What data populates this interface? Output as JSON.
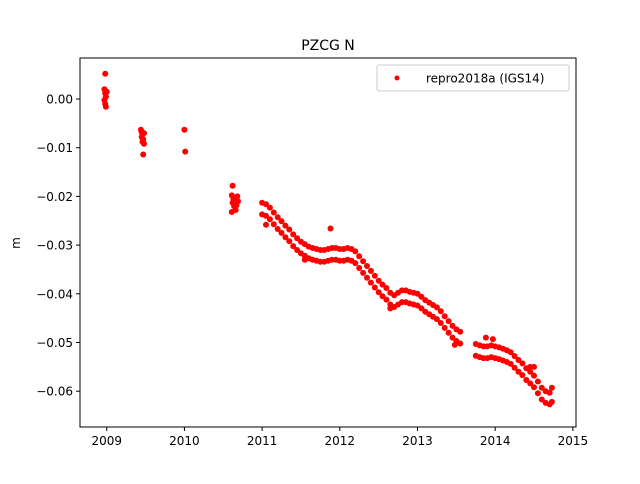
{
  "chart_data": {
    "type": "scatter",
    "title": "PZCG N",
    "xlabel": "",
    "ylabel": "m",
    "xlim": [
      2008.656,
      2015.04
    ],
    "ylim": [
      -0.06735,
      0.00842
    ],
    "xticks": [
      2009,
      2010,
      2011,
      2012,
      2013,
      2014,
      2015
    ],
    "xtick_labels": [
      "2009",
      "2010",
      "2011",
      "2012",
      "2013",
      "2014",
      "2015"
    ],
    "yticks": [
      0.0,
      -0.01,
      -0.02,
      -0.03,
      -0.04,
      -0.05,
      -0.06
    ],
    "ytick_labels": [
      "0.00",
      "−0.01",
      "−0.02",
      "−0.03",
      "−0.04",
      "−0.05",
      "−0.06"
    ],
    "grid": false,
    "legend": {
      "placement": "top-right",
      "entries": [
        "repro2018a (IGS14)"
      ]
    },
    "series": [
      {
        "name": "repro2018a (IGS14)",
        "color": "#ff0000",
        "marker": "circle",
        "points": [
          [
            2008.98,
            0.0052
          ],
          [
            2008.97,
            0.002
          ],
          [
            2008.98,
            0.0012
          ],
          [
            2008.99,
            0.0005
          ],
          [
            2008.97,
            -0.0002
          ],
          [
            2008.98,
            -0.001
          ],
          [
            2008.99,
            -0.0016
          ],
          [
            2009.0,
            0.0015
          ],
          [
            2009.44,
            -0.0063
          ],
          [
            2009.45,
            -0.0068
          ],
          [
            2009.46,
            -0.0072
          ],
          [
            2009.45,
            -0.0078
          ],
          [
            2009.47,
            -0.0083
          ],
          [
            2009.46,
            -0.0088
          ],
          [
            2009.48,
            -0.0092
          ],
          [
            2009.47,
            -0.0114
          ],
          [
            2009.48,
            -0.007
          ],
          [
            2010.0,
            -0.0063
          ],
          [
            2010.01,
            -0.0108
          ],
          [
            2010.62,
            -0.0178
          ],
          [
            2010.61,
            -0.0198
          ],
          [
            2010.63,
            -0.0205
          ],
          [
            2010.62,
            -0.0213
          ],
          [
            2010.64,
            -0.022
          ],
          [
            2010.61,
            -0.0232
          ],
          [
            2010.66,
            -0.0228
          ],
          [
            2010.68,
            -0.02
          ],
          [
            2010.69,
            -0.021
          ],
          [
            2010.67,
            -0.0218
          ],
          [
            2011.0,
            -0.0213
          ],
          [
            2011.0,
            -0.0237
          ],
          [
            2011.05,
            -0.0216
          ],
          [
            2011.05,
            -0.024
          ],
          [
            2011.1,
            -0.0223
          ],
          [
            2011.1,
            -0.0247
          ],
          [
            2011.15,
            -0.0233
          ],
          [
            2011.15,
            -0.0257
          ],
          [
            2011.2,
            -0.0243
          ],
          [
            2011.2,
            -0.0267
          ],
          [
            2011.25,
            -0.0251
          ],
          [
            2011.25,
            -0.0275
          ],
          [
            2011.3,
            -0.026
          ],
          [
            2011.3,
            -0.0284
          ],
          [
            2011.35,
            -0.0268
          ],
          [
            2011.35,
            -0.0292
          ],
          [
            2011.4,
            -0.0278
          ],
          [
            2011.4,
            -0.0302
          ],
          [
            2011.45,
            -0.0286
          ],
          [
            2011.45,
            -0.031
          ],
          [
            2011.5,
            -0.0293
          ],
          [
            2011.5,
            -0.0317
          ],
          [
            2011.55,
            -0.0298
          ],
          [
            2011.55,
            -0.0322
          ],
          [
            2011.6,
            -0.0303
          ],
          [
            2011.6,
            -0.0327
          ],
          [
            2011.65,
            -0.0306
          ],
          [
            2011.65,
            -0.033
          ],
          [
            2011.7,
            -0.0308
          ],
          [
            2011.7,
            -0.0332
          ],
          [
            2011.75,
            -0.031
          ],
          [
            2011.75,
            -0.0334
          ],
          [
            2011.8,
            -0.031
          ],
          [
            2011.8,
            -0.0334
          ],
          [
            2011.85,
            -0.0308
          ],
          [
            2011.85,
            -0.0332
          ],
          [
            2011.9,
            -0.0306
          ],
          [
            2011.9,
            -0.033
          ],
          [
            2011.95,
            -0.0306
          ],
          [
            2011.95,
            -0.033
          ],
          [
            2012.0,
            -0.0308
          ],
          [
            2012.0,
            -0.0332
          ],
          [
            2012.05,
            -0.0308
          ],
          [
            2012.05,
            -0.0332
          ],
          [
            2012.1,
            -0.0306
          ],
          [
            2012.1,
            -0.033
          ],
          [
            2012.15,
            -0.0308
          ],
          [
            2012.15,
            -0.0332
          ],
          [
            2012.2,
            -0.0313
          ],
          [
            2012.2,
            -0.0337
          ],
          [
            2012.25,
            -0.0323
          ],
          [
            2012.25,
            -0.0347
          ],
          [
            2012.3,
            -0.0333
          ],
          [
            2012.3,
            -0.0357
          ],
          [
            2012.35,
            -0.0343
          ],
          [
            2012.35,
            -0.0367
          ],
          [
            2012.4,
            -0.0353
          ],
          [
            2012.4,
            -0.0377
          ],
          [
            2012.45,
            -0.0363
          ],
          [
            2012.45,
            -0.0387
          ],
          [
            2012.5,
            -0.0373
          ],
          [
            2012.5,
            -0.0397
          ],
          [
            2012.55,
            -0.0381
          ],
          [
            2012.55,
            -0.0405
          ],
          [
            2012.6,
            -0.0388
          ],
          [
            2012.6,
            -0.0412
          ],
          [
            2012.65,
            -0.0398
          ],
          [
            2012.65,
            -0.0422
          ],
          [
            2012.7,
            -0.0403
          ],
          [
            2012.7,
            -0.0427
          ],
          [
            2012.75,
            -0.0398
          ],
          [
            2012.75,
            -0.0422
          ],
          [
            2012.8,
            -0.0393
          ],
          [
            2012.8,
            -0.0417
          ],
          [
            2012.85,
            -0.0393
          ],
          [
            2012.85,
            -0.0417
          ],
          [
            2012.9,
            -0.0396
          ],
          [
            2012.9,
            -0.042
          ],
          [
            2012.95,
            -0.0398
          ],
          [
            2012.95,
            -0.0422
          ],
          [
            2013.0,
            -0.04
          ],
          [
            2013.0,
            -0.0424
          ],
          [
            2013.05,
            -0.0406
          ],
          [
            2013.05,
            -0.043
          ],
          [
            2013.1,
            -0.0413
          ],
          [
            2013.1,
            -0.0437
          ],
          [
            2013.15,
            -0.0418
          ],
          [
            2013.15,
            -0.0442
          ],
          [
            2013.2,
            -0.0423
          ],
          [
            2013.2,
            -0.0447
          ],
          [
            2013.25,
            -0.0428
          ],
          [
            2013.25,
            -0.0452
          ],
          [
            2013.3,
            -0.0436
          ],
          [
            2013.3,
            -0.046
          ],
          [
            2013.35,
            -0.0446
          ],
          [
            2013.35,
            -0.047
          ],
          [
            2013.4,
            -0.0456
          ],
          [
            2013.4,
            -0.048
          ],
          [
            2013.45,
            -0.0466
          ],
          [
            2013.45,
            -0.049
          ],
          [
            2013.5,
            -0.0473
          ],
          [
            2013.5,
            -0.0497
          ],
          [
            2013.55,
            -0.0478
          ],
          [
            2013.55,
            -0.0502
          ],
          [
            2013.75,
            -0.0503
          ],
          [
            2013.75,
            -0.0527
          ],
          [
            2013.8,
            -0.0506
          ],
          [
            2013.8,
            -0.053
          ],
          [
            2013.85,
            -0.0508
          ],
          [
            2013.85,
            -0.0532
          ],
          [
            2013.9,
            -0.0508
          ],
          [
            2013.9,
            -0.0532
          ],
          [
            2013.95,
            -0.0506
          ],
          [
            2013.95,
            -0.053
          ],
          [
            2014.0,
            -0.0508
          ],
          [
            2014.0,
            -0.0532
          ],
          [
            2014.05,
            -0.051
          ],
          [
            2014.05,
            -0.0534
          ],
          [
            2014.1,
            -0.0513
          ],
          [
            2014.1,
            -0.0537
          ],
          [
            2014.15,
            -0.0516
          ],
          [
            2014.15,
            -0.054
          ],
          [
            2014.2,
            -0.052
          ],
          [
            2014.2,
            -0.0544
          ],
          [
            2014.25,
            -0.0528
          ],
          [
            2014.25,
            -0.0552
          ],
          [
            2014.3,
            -0.0536
          ],
          [
            2014.3,
            -0.056
          ],
          [
            2014.35,
            -0.0543
          ],
          [
            2014.35,
            -0.0567
          ],
          [
            2014.4,
            -0.0553
          ],
          [
            2014.4,
            -0.0577
          ],
          [
            2014.45,
            -0.056
          ],
          [
            2014.45,
            -0.0584
          ],
          [
            2014.5,
            -0.0568
          ],
          [
            2014.5,
            -0.0592
          ],
          [
            2014.55,
            -0.058
          ],
          [
            2014.55,
            -0.0604
          ],
          [
            2014.6,
            -0.0593
          ],
          [
            2014.6,
            -0.0617
          ],
          [
            2014.65,
            -0.06
          ],
          [
            2014.65,
            -0.0624
          ],
          [
            2014.7,
            -0.0603
          ],
          [
            2014.7,
            -0.0627
          ],
          [
            2014.73,
            -0.0593
          ],
          [
            2014.73,
            -0.0622
          ],
          [
            2011.05,
            -0.0258
          ],
          [
            2011.88,
            -0.0266
          ],
          [
            2011.55,
            -0.033
          ],
          [
            2012.65,
            -0.043
          ],
          [
            2013.48,
            -0.0505
          ],
          [
            2013.88,
            -0.049
          ],
          [
            2013.97,
            -0.0493
          ],
          [
            2014.45,
            -0.055
          ],
          [
            2014.5,
            -0.055
          ]
        ]
      }
    ]
  }
}
